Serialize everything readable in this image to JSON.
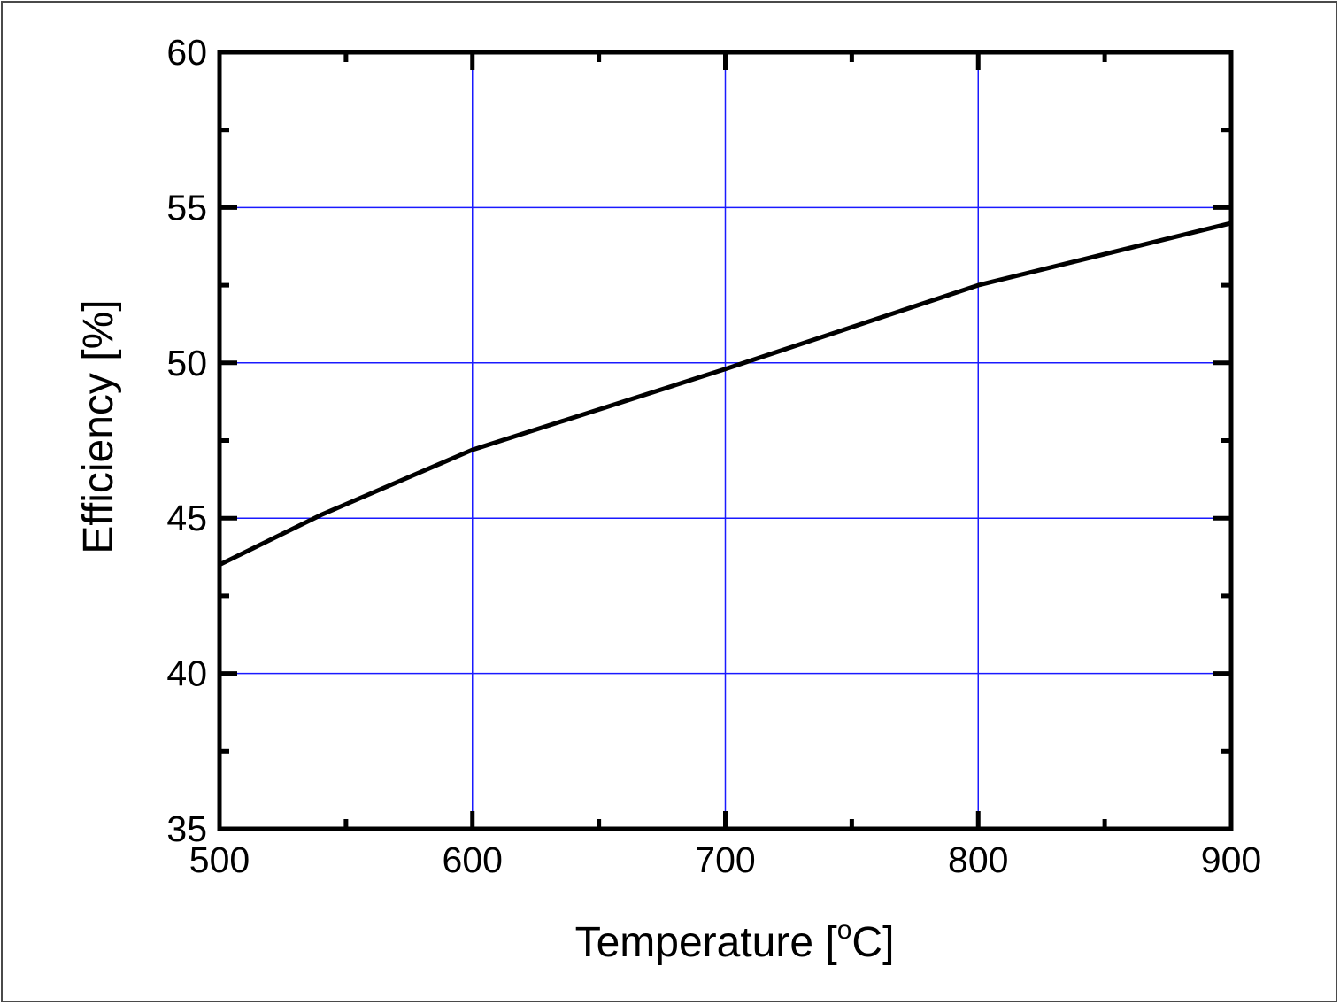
{
  "chart_data": {
    "type": "line",
    "xlabel": "Temperature [",
    "xlabel_superscript": "o",
    "xlabel_suffix": "C]",
    "ylabel": "Efficiency [%]",
    "xlim": [
      500,
      900
    ],
    "ylim": [
      35,
      60
    ],
    "x_ticks": [
      500,
      600,
      700,
      800,
      900
    ],
    "y_ticks": [
      35,
      40,
      45,
      50,
      55,
      60
    ],
    "x_minor_step": 50,
    "y_minor_step": 2.5,
    "grid": true,
    "grid_color": "#1a1aff",
    "series": [
      {
        "color": "#000000",
        "x": [
          500,
          540,
          600,
          700,
          800,
          900
        ],
        "y": [
          43.5,
          45.1,
          47.2,
          49.8,
          52.5,
          54.5
        ]
      }
    ]
  }
}
